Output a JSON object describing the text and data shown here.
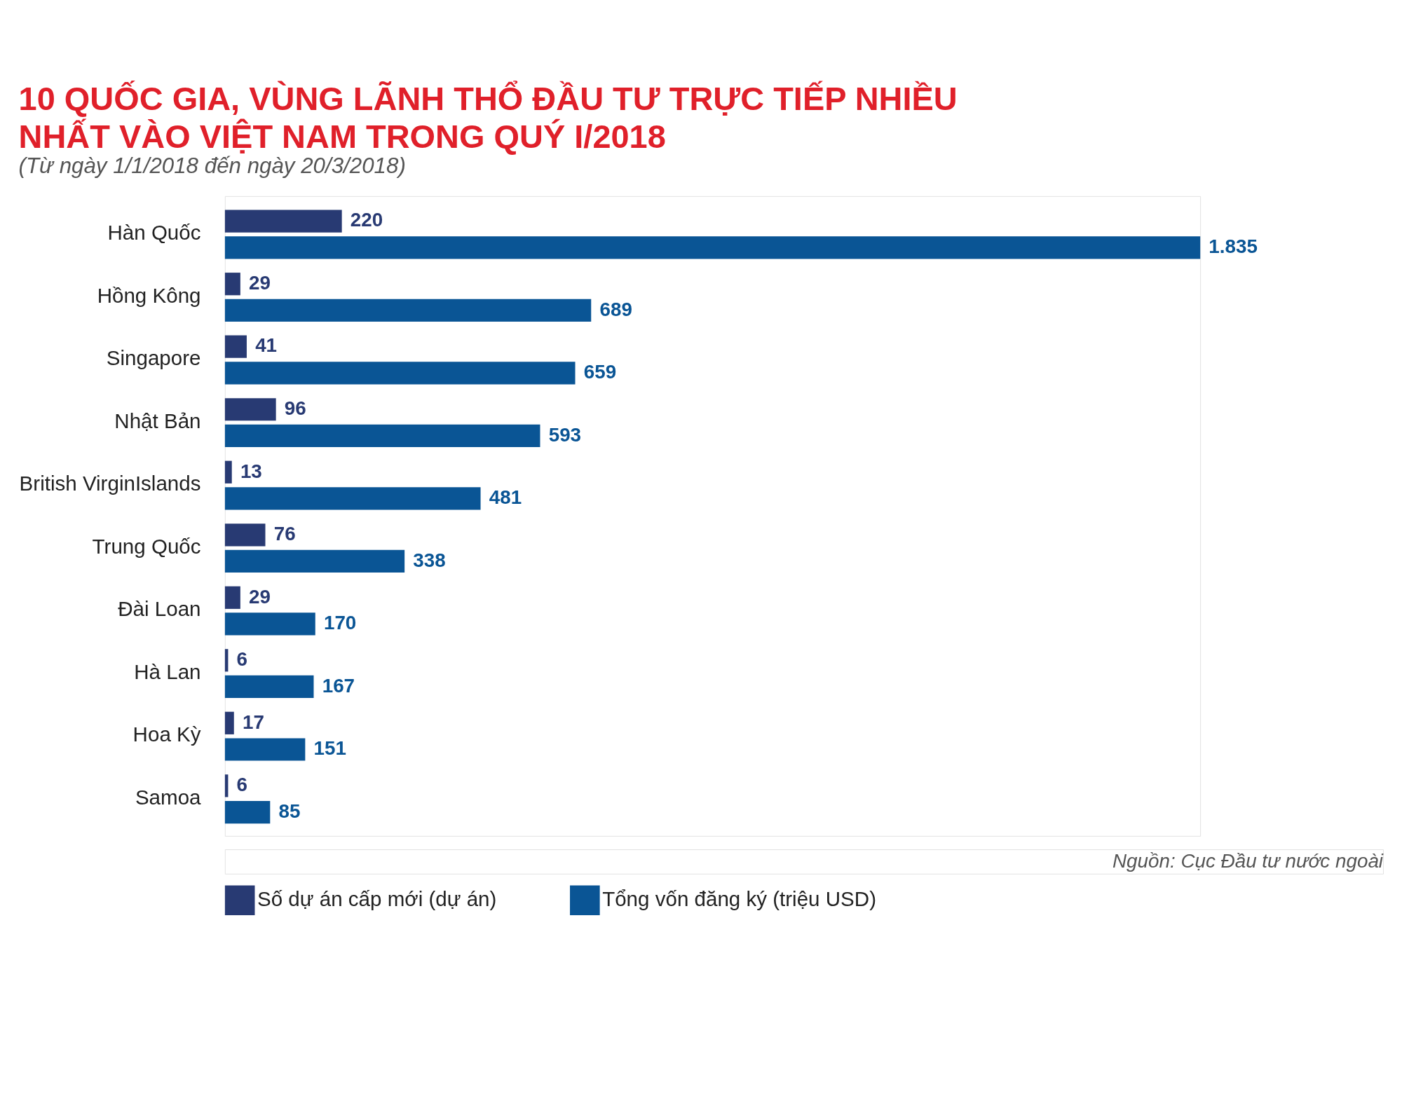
{
  "chart_data": {
    "type": "bar",
    "orientation": "horizontal",
    "title": "10 QUỐC GIA, VÙNG LÃNH THỔ ĐẦU TƯ TRỰC TIẾP NHIỀU NHẤT VÀO VIỆT NAM TRONG QUÝ I/2018",
    "subtitle": "(Từ ngày 1/1/2018 đến ngày 20/3/2018)",
    "categories": [
      "Hàn Quốc",
      "Hồng Kông",
      "Singapore",
      "Nhật Bản",
      "British VirginIslands",
      "Trung Quốc",
      "Đài Loan",
      "Hà Lan",
      "Hoa Kỳ",
      "Samoa"
    ],
    "series": [
      {
        "name": "Số dự án cấp mới (dự án)",
        "color": "#283a73",
        "values": [
          220,
          29,
          41,
          96,
          13,
          76,
          29,
          6,
          17,
          6
        ],
        "value_labels": [
          "220",
          "29",
          "41",
          "96",
          "13",
          "76",
          "29",
          "6",
          "17",
          "6"
        ]
      },
      {
        "name": "Tổng vốn đăng ký (triệu USD)",
        "color": "#0a5595",
        "values": [
          1835,
          689,
          659,
          593,
          481,
          338,
          170,
          167,
          151,
          85
        ],
        "value_labels": [
          "1.835",
          "689",
          "659",
          "593",
          "481",
          "338",
          "170",
          "167",
          "151",
          "85"
        ]
      }
    ],
    "legend": "bottom",
    "annotations": [
      "Nguồn: Cục Đầu tư nước ngoài"
    ]
  }
}
